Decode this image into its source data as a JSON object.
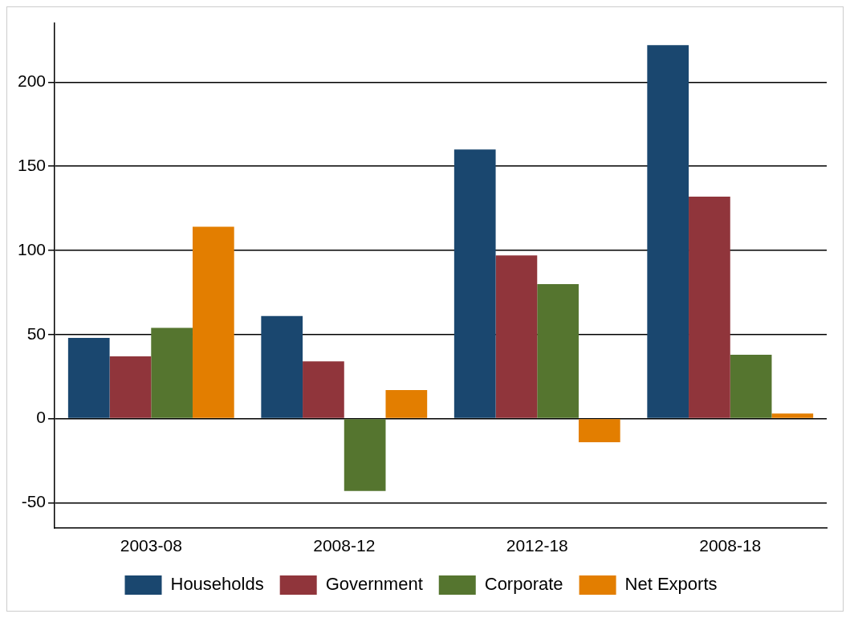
{
  "chart_data": {
    "type": "bar",
    "categories": [
      "2003-08",
      "2008-12",
      "2012-18",
      "2008-18"
    ],
    "series": [
      {
        "name": "Households",
        "color": "#1a476f",
        "values": [
          48,
          61,
          160,
          222
        ]
      },
      {
        "name": "Government",
        "color": "#90353b",
        "values": [
          37,
          34,
          97,
          132
        ]
      },
      {
        "name": "Corporate",
        "color": "#55752f",
        "values": [
          54,
          -43,
          80,
          38
        ]
      },
      {
        "name": "Net Exports",
        "color": "#e37e00",
        "values": [
          114,
          17,
          -14,
          3
        ]
      }
    ],
    "ylim": [
      -65,
      235
    ],
    "yticks": [
      -50,
      0,
      50,
      100,
      150,
      200
    ],
    "grid": "y",
    "legend": "bottom"
  }
}
